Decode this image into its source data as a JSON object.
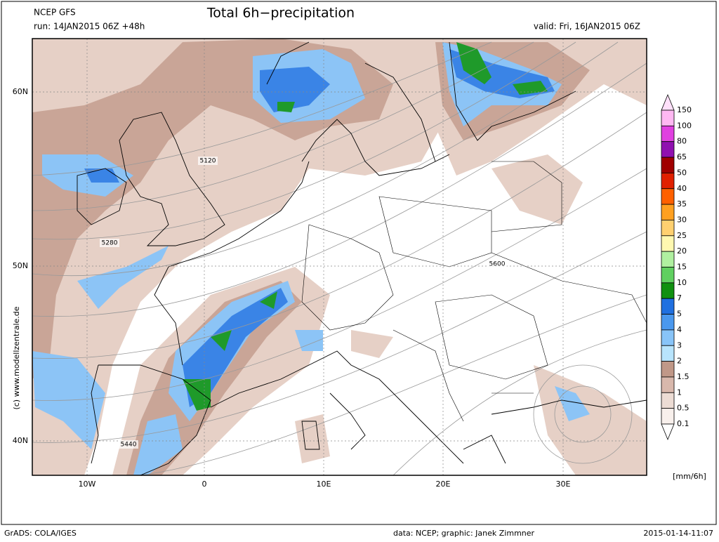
{
  "header": {
    "model": "NCEP GFS",
    "run": "run: 14JAN2015 06Z +48h",
    "title": "Total 6h−precipitation",
    "valid": "valid: Fri, 16JAN2015 06Z"
  },
  "axes": {
    "lat_labels": [
      "60N",
      "50N",
      "40N"
    ],
    "lon_labels": [
      "10W",
      "0",
      "10E",
      "20E",
      "30E"
    ]
  },
  "contour_labels": [
    "5120",
    "5280",
    "5440",
    "5600"
  ],
  "legend": {
    "unit": "[mm/6h]",
    "levels": [
      {
        "label": "150",
        "color": "#ffe0fa"
      },
      {
        "label": "100",
        "color": "#ffb8f2"
      },
      {
        "label": "80",
        "color": "#e040e0"
      },
      {
        "label": "65",
        "color": "#9010b0"
      },
      {
        "label": "50",
        "color": "#a00000"
      },
      {
        "label": "40",
        "color": "#e02000"
      },
      {
        "label": "35",
        "color": "#ff6000"
      },
      {
        "label": "30",
        "color": "#ffa020"
      },
      {
        "label": "25",
        "color": "#ffd070"
      },
      {
        "label": "20",
        "color": "#fff8b0"
      },
      {
        "label": "15",
        "color": "#b0f0a0"
      },
      {
        "label": "10",
        "color": "#60d060"
      },
      {
        "label": "7",
        "color": "#109010"
      },
      {
        "label": "5",
        "color": "#2070e0"
      },
      {
        "label": "4",
        "color": "#4a98ee"
      },
      {
        "label": "3",
        "color": "#88c4f8"
      },
      {
        "label": "2",
        "color": "#b8e4fc"
      },
      {
        "label": "1.5",
        "color": "#c09888"
      },
      {
        "label": "1",
        "color": "#d8b8ac"
      },
      {
        "label": "0.5",
        "color": "#ecdcd4"
      },
      {
        "label": "0.1",
        "color": "#f8f0ec"
      }
    ]
  },
  "watermark": "(c)  www.modellzentrale.de",
  "footer": {
    "left": "GrADS: COLA/IGES",
    "center": "data: NCEP; graphic: Janek Zimmner",
    "right": "2015-01-14-11:07"
  }
}
